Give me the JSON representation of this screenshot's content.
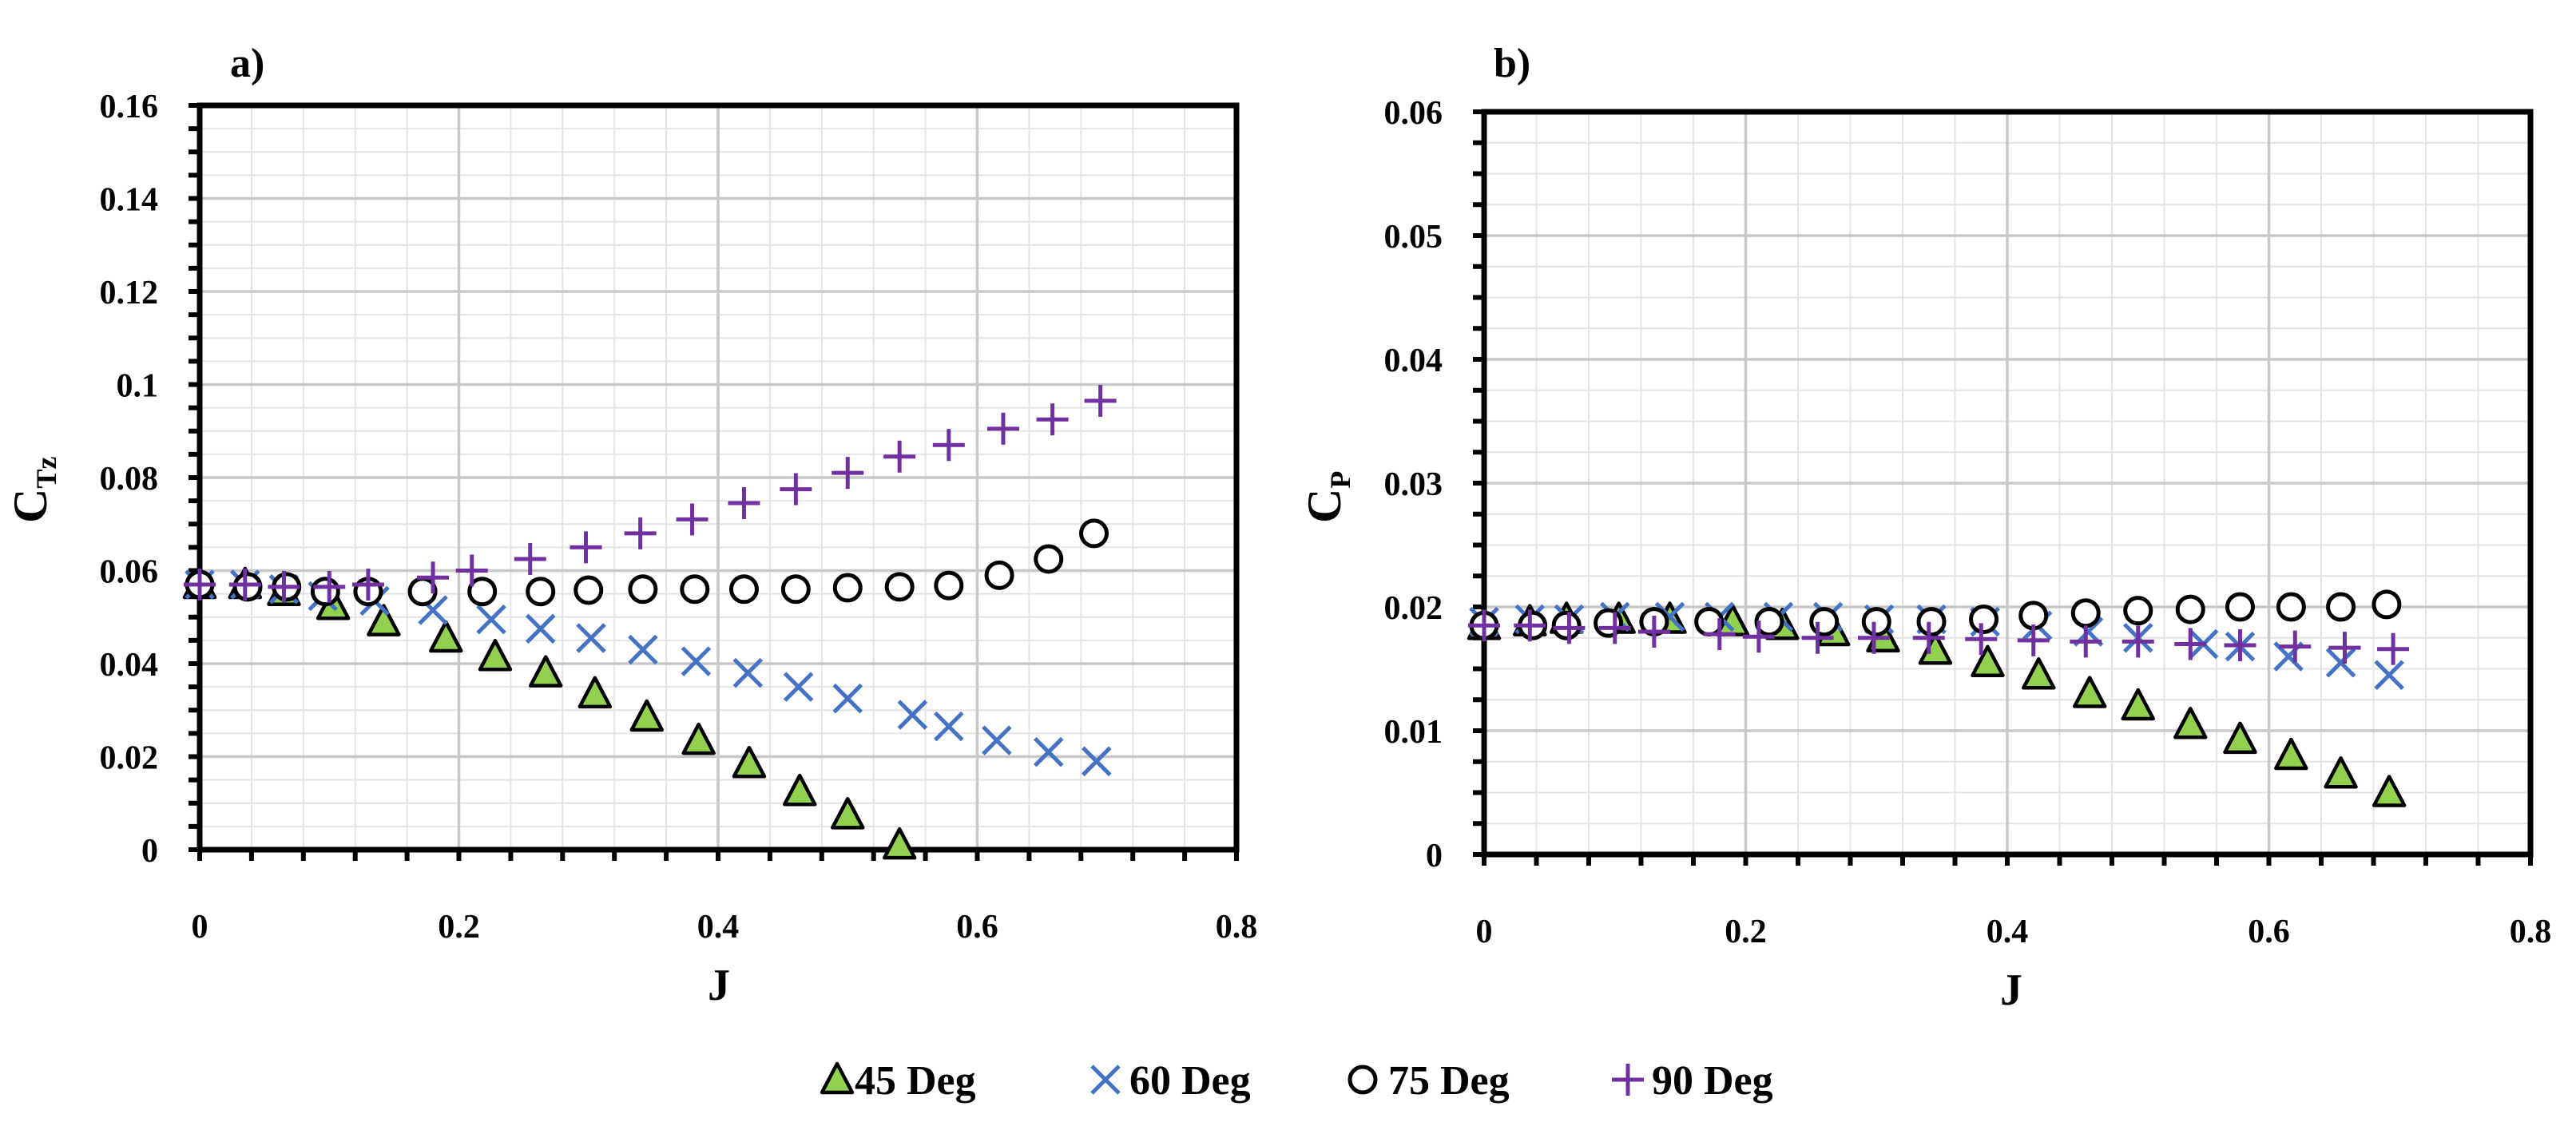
{
  "legend": {
    "items": [
      {
        "label": "45 Deg",
        "marker": "triangle",
        "fill": "#92D050",
        "stroke": "#000000"
      },
      {
        "label": "60 Deg",
        "marker": "x",
        "stroke": "#4472C4"
      },
      {
        "label": "75 Deg",
        "marker": "circle",
        "fill": "#ffffff",
        "stroke": "#000000"
      },
      {
        "label": "90 Deg",
        "marker": "plus",
        "stroke": "#7030A0"
      }
    ]
  },
  "chart_data": [
    {
      "type": "scatter",
      "panel_label": "a)",
      "xlabel": "J",
      "ylabel_main": "C",
      "ylabel_sub": "Tz",
      "xlim": [
        0,
        0.8
      ],
      "ylim": [
        0,
        0.16
      ],
      "x_ticks": [
        "0",
        "0.2",
        "0.4",
        "0.6",
        "0.8"
      ],
      "y_ticks": [
        "0",
        "0.02",
        "0.04",
        "0.06",
        "0.08",
        "0.1",
        "0.12",
        "0.14",
        "0.16"
      ],
      "grid": true,
      "series": [
        {
          "name": "45 Deg",
          "x": [
            0,
            0.035,
            0.065,
            0.103,
            0.142,
            0.19,
            0.228,
            0.267,
            0.305,
            0.345,
            0.385,
            0.424,
            0.463,
            0.5,
            0.54
          ],
          "y": [
            0.057,
            0.057,
            0.0555,
            0.0525,
            0.049,
            0.0455,
            0.0415,
            0.038,
            0.0335,
            0.0285,
            0.0235,
            0.0185,
            0.0125,
            0.0075,
            0.001
          ]
        },
        {
          "name": "60 Deg",
          "x": [
            0,
            0.035,
            0.065,
            0.095,
            0.135,
            0.18,
            0.225,
            0.263,
            0.302,
            0.342,
            0.383,
            0.423,
            0.462,
            0.5,
            0.55,
            0.578,
            0.615,
            0.655,
            0.692
          ],
          "y": [
            0.057,
            0.057,
            0.056,
            0.0545,
            0.0535,
            0.0515,
            0.0495,
            0.0475,
            0.0455,
            0.043,
            0.0405,
            0.038,
            0.035,
            0.0325,
            0.029,
            0.0265,
            0.0235,
            0.021,
            0.019
          ]
        },
        {
          "name": "75 Deg",
          "x": [
            0,
            0.037,
            0.067,
            0.097,
            0.13,
            0.172,
            0.218,
            0.263,
            0.3,
            0.342,
            0.382,
            0.42,
            0.46,
            0.5,
            0.54,
            0.578,
            0.617,
            0.655,
            0.69
          ],
          "y": [
            0.057,
            0.0565,
            0.0565,
            0.0555,
            0.0555,
            0.0555,
            0.0555,
            0.0555,
            0.0558,
            0.056,
            0.056,
            0.056,
            0.056,
            0.0563,
            0.0565,
            0.0568,
            0.059,
            0.0625,
            0.068
          ]
        },
        {
          "name": "90 Deg",
          "x": [
            0,
            0.035,
            0.065,
            0.1,
            0.13,
            0.18,
            0.21,
            0.255,
            0.298,
            0.34,
            0.38,
            0.42,
            0.46,
            0.5,
            0.54,
            0.578,
            0.62,
            0.658,
            0.695
          ],
          "y": [
            0.057,
            0.057,
            0.0565,
            0.0565,
            0.057,
            0.0585,
            0.06,
            0.0625,
            0.065,
            0.068,
            0.071,
            0.0745,
            0.0775,
            0.081,
            0.0845,
            0.087,
            0.0905,
            0.0925,
            0.0965
          ]
        }
      ]
    },
    {
      "type": "scatter",
      "panel_label": "b)",
      "xlabel": "J",
      "ylabel_main": "C",
      "ylabel_sub": "P",
      "xlim": [
        0,
        0.8
      ],
      "ylim": [
        0,
        0.06
      ],
      "x_ticks": [
        "0",
        "0.2",
        "0.4",
        "0.6",
        "0.8"
      ],
      "y_ticks": [
        "0",
        "0.01",
        "0.02",
        "0.03",
        "0.04",
        "0.05",
        "0.06"
      ],
      "grid": true,
      "series": [
        {
          "name": "45 Deg",
          "x": [
            0,
            0.035,
            0.063,
            0.103,
            0.142,
            0.19,
            0.228,
            0.267,
            0.305,
            0.345,
            0.385,
            0.424,
            0.463,
            0.5,
            0.54,
            0.578,
            0.617,
            0.655,
            0.692
          ],
          "y": [
            0.0185,
            0.0188,
            0.019,
            0.019,
            0.019,
            0.0188,
            0.0185,
            0.018,
            0.0175,
            0.0165,
            0.0155,
            0.0145,
            0.013,
            0.012,
            0.0105,
            0.0093,
            0.008,
            0.0065,
            0.005
          ]
        },
        {
          "name": "60 Deg",
          "x": [
            0,
            0.035,
            0.065,
            0.1,
            0.142,
            0.18,
            0.225,
            0.263,
            0.302,
            0.342,
            0.383,
            0.423,
            0.462,
            0.5,
            0.55,
            0.578,
            0.615,
            0.655,
            0.692
          ],
          "y": [
            0.0188,
            0.019,
            0.019,
            0.0192,
            0.0192,
            0.0192,
            0.0192,
            0.0192,
            0.019,
            0.019,
            0.0188,
            0.0185,
            0.018,
            0.0175,
            0.017,
            0.0168,
            0.016,
            0.0155,
            0.0145
          ]
        },
        {
          "name": "75 Deg",
          "x": [
            0,
            0.037,
            0.063,
            0.095,
            0.13,
            0.172,
            0.218,
            0.26,
            0.3,
            0.342,
            0.382,
            0.42,
            0.46,
            0.5,
            0.54,
            0.578,
            0.617,
            0.655,
            0.69
          ],
          "y": [
            0.0185,
            0.0185,
            0.0185,
            0.0187,
            0.0188,
            0.0188,
            0.0188,
            0.0188,
            0.0188,
            0.0188,
            0.019,
            0.0193,
            0.0195,
            0.0197,
            0.0198,
            0.02,
            0.02,
            0.02,
            0.0202
          ]
        },
        {
          "name": "90 Deg",
          "x": [
            0,
            0.035,
            0.065,
            0.1,
            0.13,
            0.18,
            0.21,
            0.255,
            0.298,
            0.34,
            0.38,
            0.42,
            0.46,
            0.5,
            0.54,
            0.578,
            0.62,
            0.658,
            0.695
          ],
          "y": [
            0.0185,
            0.0185,
            0.0183,
            0.0183,
            0.018,
            0.0178,
            0.0176,
            0.0175,
            0.0175,
            0.0175,
            0.0174,
            0.0173,
            0.0172,
            0.0172,
            0.017,
            0.0169,
            0.0168,
            0.0167,
            0.0166
          ]
        }
      ]
    }
  ]
}
